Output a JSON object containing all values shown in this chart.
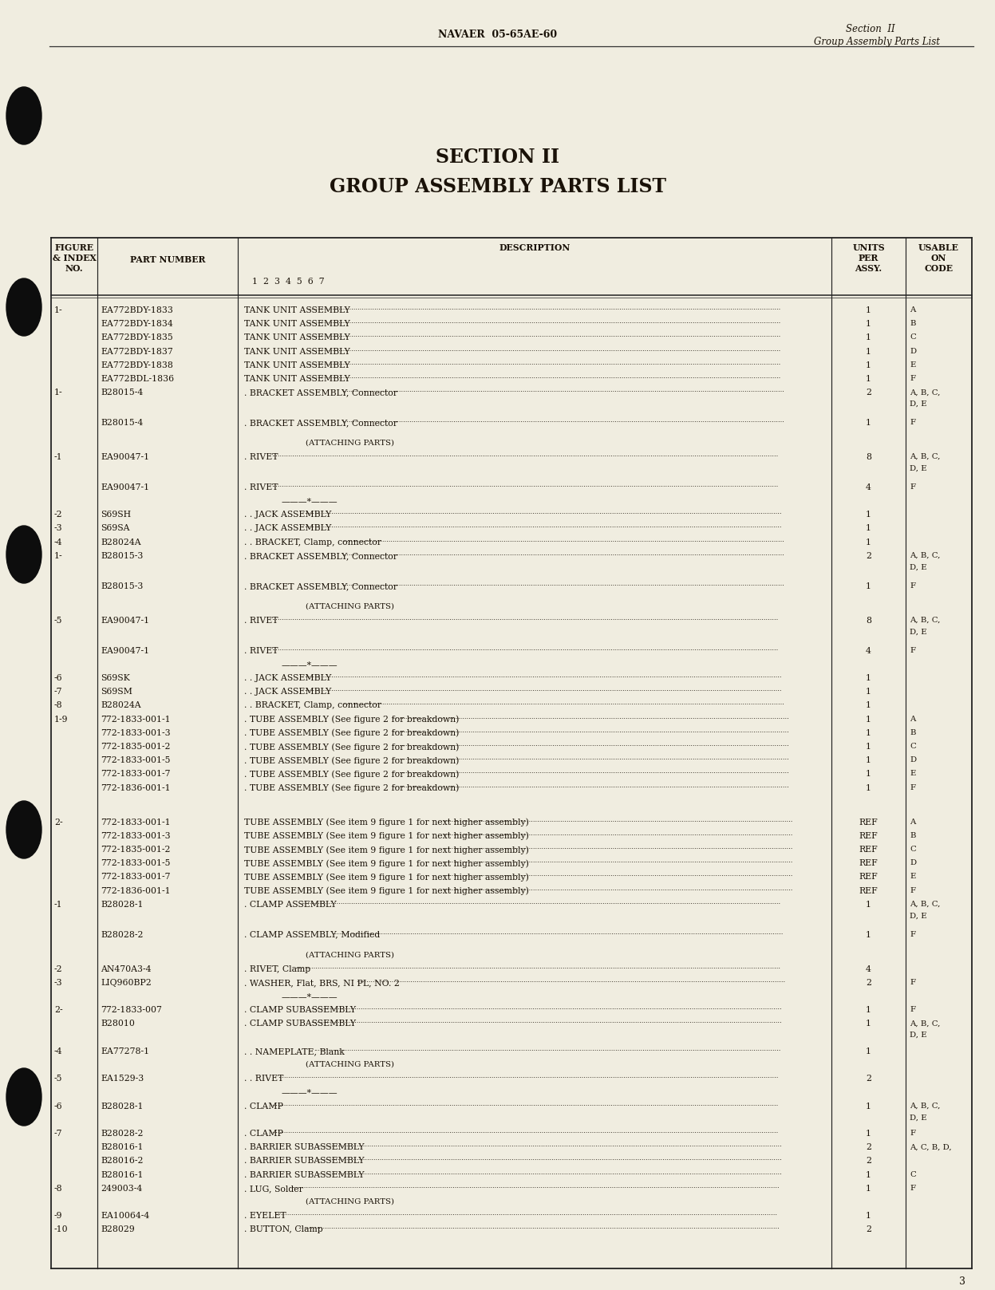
{
  "bg_color": "#f0ede0",
  "page_number": "3",
  "header_center": "NAVAER  05-65AE-60",
  "header_right_line1": "Section  II",
  "header_right_line2": "Group Assembly Parts List",
  "title_line1": "SECTION II",
  "title_line2": "GROUP ASSEMBLY PARTS LIST",
  "rows": [
    {
      "fig": "1-",
      "part": "EA772BDY-1833",
      "desc": "TANK UNIT ASSEMBLY",
      "dots": true,
      "units": "1",
      "usable": "A",
      "sp": 1.0
    },
    {
      "fig": "",
      "part": "EA772BDY-1834",
      "desc": "TANK UNIT ASSEMBLY",
      "dots": true,
      "units": "1",
      "usable": "B",
      "sp": 1.0
    },
    {
      "fig": "",
      "part": "EA772BDY-1835",
      "desc": "TANK UNIT ASSEMBLY",
      "dots": true,
      "units": "1",
      "usable": "C",
      "sp": 1.0
    },
    {
      "fig": "",
      "part": "EA772BDY-1837",
      "desc": "TANK UNIT ASSEMBLY",
      "dots": true,
      "units": "1",
      "usable": "D",
      "sp": 1.0
    },
    {
      "fig": "",
      "part": "EA772BDY-1838",
      "desc": "TANK UNIT ASSEMBLY",
      "dots": true,
      "units": "1",
      "usable": "E",
      "sp": 1.0
    },
    {
      "fig": "",
      "part": "EA772BDL-1836",
      "desc": "TANK UNIT ASSEMBLY",
      "dots": true,
      "units": "1",
      "usable": "F",
      "sp": 1.0
    },
    {
      "fig": "1-",
      "part": "B28015-4",
      "desc": ". BRACKET ASSEMBLY, Connector",
      "dots": true,
      "units": "2",
      "usable": "A, B, C,\nD, E",
      "sp": 2.2
    },
    {
      "fig": "",
      "part": "B28015-4",
      "desc": ". BRACKET ASSEMBLY, Connector",
      "dots": true,
      "units": "1",
      "usable": "F",
      "sp": 1.5
    },
    {
      "fig": "",
      "part": "",
      "desc": "(ATTACHING PARTS)",
      "dots": false,
      "units": "",
      "usable": "",
      "sp": 1.0
    },
    {
      "fig": "-1",
      "part": "EA90047-1",
      "desc": ". RIVET",
      "dots": true,
      "units": "8",
      "usable": "A, B, C,\nD, E",
      "sp": 2.2
    },
    {
      "fig": "",
      "part": "EA90047-1",
      "desc": ". RIVET",
      "dots": true,
      "units": "4",
      "usable": "F",
      "sp": 1.0
    },
    {
      "fig": "",
      "part": "",
      "desc": "DASHDASH",
      "dots": false,
      "units": "",
      "usable": "",
      "sp": 1.0
    },
    {
      "fig": "-2",
      "part": "S69SH",
      "desc": ". . JACK ASSEMBLY",
      "dots": true,
      "units": "1",
      "usable": "",
      "sp": 1.0
    },
    {
      "fig": "-3",
      "part": "S69SA",
      "desc": ". . JACK ASSEMBLY",
      "dots": true,
      "units": "1",
      "usable": "",
      "sp": 1.0
    },
    {
      "fig": "-4",
      "part": "B28024A",
      "desc": ". . BRACKET, Clamp, connector",
      "dots": true,
      "units": "1",
      "usable": "",
      "sp": 1.0
    },
    {
      "fig": "1-",
      "part": "B28015-3",
      "desc": ". BRACKET ASSEMBLY, Connector",
      "dots": true,
      "units": "2",
      "usable": "A, B, C,\nD, E",
      "sp": 2.2
    },
    {
      "fig": "",
      "part": "B28015-3",
      "desc": ". BRACKET ASSEMBLY, Connector",
      "dots": true,
      "units": "1",
      "usable": "F",
      "sp": 1.5
    },
    {
      "fig": "",
      "part": "",
      "desc": "(ATTACHING PARTS)",
      "dots": false,
      "units": "",
      "usable": "",
      "sp": 1.0
    },
    {
      "fig": "-5",
      "part": "EA90047-1",
      "desc": ". RIVET",
      "dots": true,
      "units": "8",
      "usable": "A, B, C,\nD, E",
      "sp": 2.2
    },
    {
      "fig": "",
      "part": "EA90047-1",
      "desc": ". RIVET",
      "dots": true,
      "units": "4",
      "usable": "F",
      "sp": 1.0
    },
    {
      "fig": "",
      "part": "",
      "desc": "DASHDASH",
      "dots": false,
      "units": "",
      "usable": "",
      "sp": 1.0
    },
    {
      "fig": "-6",
      "part": "S69SK",
      "desc": ". . JACK ASSEMBLY",
      "dots": true,
      "units": "1",
      "usable": "",
      "sp": 1.0
    },
    {
      "fig": "-7",
      "part": "S69SM",
      "desc": ". . JACK ASSEMBLY",
      "dots": true,
      "units": "1",
      "usable": "",
      "sp": 1.0
    },
    {
      "fig": "-8",
      "part": "B28024A",
      "desc": ". . BRACKET, Clamp, connector",
      "dots": true,
      "units": "1",
      "usable": "",
      "sp": 1.0
    },
    {
      "fig": "1-9",
      "part": "772-1833-001-1",
      "desc": ". TUBE ASSEMBLY (See figure 2 for breakdown)",
      "dots": true,
      "units": "1",
      "usable": "A",
      "sp": 1.0
    },
    {
      "fig": "",
      "part": "772-1833-001-3",
      "desc": ". TUBE ASSEMBLY (See figure 2 for breakdown)",
      "dots": true,
      "units": "1",
      "usable": "B",
      "sp": 1.0
    },
    {
      "fig": "",
      "part": "772-1835-001-2",
      "desc": ". TUBE ASSEMBLY (See figure 2 for breakdown)",
      "dots": true,
      "units": "1",
      "usable": "C",
      "sp": 1.0
    },
    {
      "fig": "",
      "part": "772-1833-001-5",
      "desc": ". TUBE ASSEMBLY (See figure 2 for breakdown)",
      "dots": true,
      "units": "1",
      "usable": "D",
      "sp": 1.0
    },
    {
      "fig": "",
      "part": "772-1833-001-7",
      "desc": ". TUBE ASSEMBLY (See figure 2 for breakdown)",
      "dots": true,
      "units": "1",
      "usable": "E",
      "sp": 1.0
    },
    {
      "fig": "",
      "part": "772-1836-001-1",
      "desc": ". TUBE ASSEMBLY (See figure 2 for breakdown)",
      "dots": true,
      "units": "1",
      "usable": "F",
      "sp": 2.5
    },
    {
      "fig": "2-",
      "part": "772-1833-001-1",
      "desc": "TUBE ASSEMBLY (See item 9 figure 1 for next higher assembly)",
      "dots": true,
      "units": "REF",
      "usable": "A",
      "sp": 1.0
    },
    {
      "fig": "",
      "part": "772-1833-001-3",
      "desc": "TUBE ASSEMBLY (See item 9 figure 1 for next higher assembly)",
      "dots": true,
      "units": "REF",
      "usable": "B",
      "sp": 1.0
    },
    {
      "fig": "",
      "part": "772-1835-001-2",
      "desc": "TUBE ASSEMBLY (See item 9 figure 1 for next higher assembly)",
      "dots": true,
      "units": "REF",
      "usable": "C",
      "sp": 1.0
    },
    {
      "fig": "",
      "part": "772-1833-001-5",
      "desc": "TUBE ASSEMBLY (See item 9 figure 1 for next higher assembly)",
      "dots": true,
      "units": "REF",
      "usable": "D",
      "sp": 1.0
    },
    {
      "fig": "",
      "part": "772-1833-001-7",
      "desc": "TUBE ASSEMBLY (See item 9 figure 1 for next higher assembly)",
      "dots": true,
      "units": "REF",
      "usable": "E",
      "sp": 1.0
    },
    {
      "fig": "",
      "part": "772-1836-001-1",
      "desc": "TUBE ASSEMBLY (See item 9 figure 1 for next higher assembly)",
      "dots": true,
      "units": "REF",
      "usable": "F",
      "sp": 1.0
    },
    {
      "fig": "-1",
      "part": "B28028-1",
      "desc": ". CLAMP ASSEMBLY",
      "dots": true,
      "units": "1",
      "usable": "A, B, C,\nD, E",
      "sp": 2.2
    },
    {
      "fig": "",
      "part": "B28028-2",
      "desc": ". CLAMP ASSEMBLY, Modified",
      "dots": true,
      "units": "1",
      "usable": "F",
      "sp": 1.5
    },
    {
      "fig": "",
      "part": "",
      "desc": "(ATTACHING PARTS)",
      "dots": false,
      "units": "",
      "usable": "",
      "sp": 1.0
    },
    {
      "fig": "-2",
      "part": "AN470A3-4",
      "desc": ". RIVET, Clamp",
      "dots": true,
      "units": "4",
      "usable": "",
      "sp": 1.0
    },
    {
      "fig": "-3",
      "part": "LIQ960BP2",
      "desc": ". WASHER, Flat, BRS, NI PL, NO. 2",
      "dots": true,
      "units": "2",
      "usable": "F",
      "sp": 1.0
    },
    {
      "fig": "",
      "part": "",
      "desc": "DASHDASH",
      "dots": false,
      "units": "",
      "usable": "",
      "sp": 1.0
    },
    {
      "fig": "2-",
      "part": "772-1833-007",
      "desc": ". CLAMP SUBASSEMBLY",
      "dots": true,
      "units": "1",
      "usable": "F",
      "sp": 1.0
    },
    {
      "fig": "",
      "part": "B28010",
      "desc": ". CLAMP SUBASSEMBLY",
      "dots": true,
      "units": "1",
      "usable": "A, B, C,\nD, E",
      "sp": 2.0
    },
    {
      "fig": "-4",
      "part": "EA77278-1",
      "desc": ". . NAMEPLATE, Blank",
      "dots": true,
      "units": "1",
      "usable": "",
      "sp": 1.0
    },
    {
      "fig": "",
      "part": "",
      "desc": "(ATTACHING PARTS)",
      "dots": false,
      "units": "",
      "usable": "",
      "sp": 1.0
    },
    {
      "fig": "-5",
      "part": "EA1529-3",
      "desc": ". . RIVET",
      "dots": true,
      "units": "2",
      "usable": "",
      "sp": 1.0
    },
    {
      "fig": "",
      "part": "",
      "desc": "DASHDASH",
      "dots": false,
      "units": "",
      "usable": "",
      "sp": 1.0
    },
    {
      "fig": "-6",
      "part": "B28028-1",
      "desc": ". CLAMP",
      "dots": true,
      "units": "1",
      "usable": "A, B, C,\nD, E",
      "sp": 2.0
    },
    {
      "fig": "-7",
      "part": "B28028-2",
      "desc": ". CLAMP",
      "dots": true,
      "units": "1",
      "usable": "F",
      "sp": 1.0
    },
    {
      "fig": "",
      "part": "B28016-1",
      "desc": ". BARRIER SUBASSEMBLY",
      "dots": true,
      "units": "2",
      "usable": "A, C, B, D,",
      "sp": 1.0
    },
    {
      "fig": "",
      "part": "B28016-2",
      "desc": ". BARRIER SUBASSEMBLY",
      "dots": true,
      "units": "2",
      "usable": "",
      "sp": 1.0
    },
    {
      "fig": "",
      "part": "B28016-1",
      "desc": ". BARRIER SUBASSEMBLY",
      "dots": true,
      "units": "1",
      "usable": "C",
      "sp": 1.0
    },
    {
      "fig": "-8",
      "part": "249003-4",
      "desc": ". LUG, Solder",
      "dots": true,
      "units": "1",
      "usable": "F",
      "sp": 1.0
    },
    {
      "fig": "",
      "part": "",
      "desc": "(ATTACHING PARTS)",
      "dots": false,
      "units": "",
      "usable": "",
      "sp": 1.0
    },
    {
      "fig": "-9",
      "part": "EA10064-4",
      "desc": ". EYELET",
      "dots": true,
      "units": "1",
      "usable": "",
      "sp": 1.0
    },
    {
      "fig": "-10",
      "part": "B28029",
      "desc": ". BUTTON, Clamp",
      "dots": true,
      "units": "2",
      "usable": "",
      "sp": 1.0
    }
  ]
}
